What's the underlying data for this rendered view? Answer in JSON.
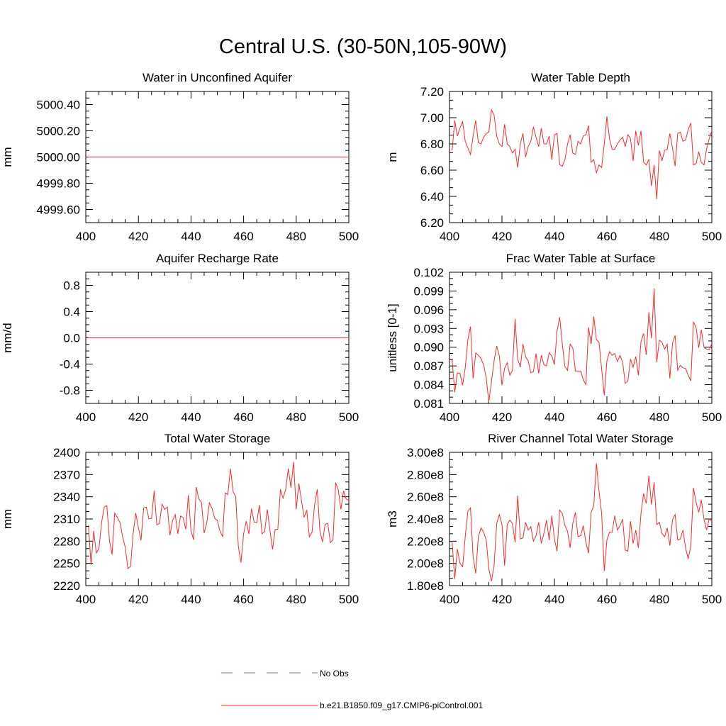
{
  "title": "Central U.S. (30-50N,105-90W)",
  "legend": [
    {
      "label": "No Obs",
      "color": "#6a6ad8",
      "style": "dashed"
    },
    {
      "label": "b.e21.B1850.f09_g17.CMIP6-piControl.001",
      "color": "#ff2a2a",
      "style": "solid"
    }
  ],
  "chart_data": [
    {
      "type": "line",
      "title": "Water in Unconfined Aquifer",
      "ylabel": "mm",
      "xlabel": "",
      "xlim": [
        400,
        500
      ],
      "ylim": [
        4999.5,
        5000.5
      ],
      "xticks": [
        400,
        420,
        440,
        460,
        480,
        500
      ],
      "xtick_labels": [
        "400",
        "420",
        "440",
        "460",
        "480",
        "500"
      ],
      "yticks": [
        4999.6,
        4999.8,
        5000.0,
        5000.2,
        5000.4
      ],
      "ytick_labels": [
        "4999.60",
        "4999.80",
        "5000.00",
        "5000.20",
        "5000.40"
      ],
      "series": [
        {
          "name": "b.e21.B1850.f09_g17.CMIP6-piControl.001",
          "color": "#ff2a2a",
          "x_start": 401,
          "x_step": 1,
          "values": [
            5000,
            5000,
            5000,
            5000,
            5000,
            5000,
            5000,
            5000,
            5000,
            5000,
            5000,
            5000,
            5000,
            5000,
            5000,
            5000,
            5000,
            5000,
            5000,
            5000,
            5000,
            5000,
            5000,
            5000,
            5000,
            5000,
            5000,
            5000,
            5000,
            5000,
            5000,
            5000,
            5000,
            5000,
            5000,
            5000,
            5000,
            5000,
            5000,
            5000,
            5000,
            5000,
            5000,
            5000,
            5000,
            5000,
            5000,
            5000,
            5000,
            5000,
            5000,
            5000,
            5000,
            5000,
            5000,
            5000,
            5000,
            5000,
            5000,
            5000,
            5000,
            5000,
            5000,
            5000,
            5000,
            5000,
            5000,
            5000,
            5000,
            5000,
            5000,
            5000,
            5000,
            5000,
            5000,
            5000,
            5000,
            5000,
            5000,
            5000,
            5000,
            5000,
            5000,
            5000,
            5000,
            5000,
            5000,
            5000,
            5000,
            5000,
            5000,
            5000,
            5000,
            5000,
            5000,
            5000,
            5000,
            5000,
            5000,
            5000
          ]
        }
      ]
    },
    {
      "type": "line",
      "title": "Water Table Depth",
      "ylabel": "m",
      "xlabel": "",
      "xlim": [
        400,
        500
      ],
      "ylim": [
        6.2,
        7.2
      ],
      "xticks": [
        400,
        420,
        440,
        460,
        480,
        500
      ],
      "xtick_labels": [
        "400",
        "420",
        "440",
        "460",
        "480",
        "500"
      ],
      "yticks": [
        6.2,
        6.4,
        6.6,
        6.8,
        7.0,
        7.2
      ],
      "ytick_labels": [
        "6.20",
        "6.40",
        "6.60",
        "6.80",
        "7.00",
        "7.20"
      ],
      "series": [
        {
          "name": "b.e21.B1850.f09_g17.CMIP6-piControl.001",
          "color": "#ff2a2a",
          "x_start": 401,
          "x_step": 1,
          "values": [
            6.75,
            6.98,
            6.86,
            6.92,
            6.97,
            6.82,
            6.77,
            6.72,
            6.86,
            6.98,
            6.81,
            6.8,
            6.85,
            6.88,
            6.89,
            7.06,
            7.02,
            6.86,
            6.8,
            6.78,
            6.95,
            6.8,
            6.78,
            6.73,
            6.76,
            6.62,
            6.8,
            6.88,
            6.7,
            6.78,
            6.82,
            6.93,
            6.85,
            6.78,
            6.92,
            6.8,
            6.8,
            6.86,
            6.68,
            6.87,
            6.88,
            6.64,
            6.63,
            6.68,
            6.8,
            6.87,
            6.73,
            6.72,
            6.82,
            6.8,
            6.86,
            6.87,
            6.94,
            6.66,
            6.68,
            6.58,
            6.64,
            6.62,
            6.8,
            7.01,
            6.84,
            6.76,
            6.76,
            6.8,
            6.83,
            6.85,
            6.78,
            6.87,
            6.84,
            6.67,
            6.9,
            6.79,
            6.9,
            6.66,
            6.64,
            6.68,
            6.48,
            6.64,
            6.38,
            6.75,
            6.67,
            6.75,
            6.76,
            6.88,
            6.77,
            6.63,
            6.88,
            6.89,
            6.82,
            6.83,
            6.91,
            6.96,
            6.64,
            6.65,
            6.74,
            6.66,
            6.64,
            6.76,
            6.84,
            6.9
          ]
        }
      ]
    },
    {
      "type": "line",
      "title": "Aquifer Recharge Rate",
      "ylabel": "mm/d",
      "xlabel": "",
      "xlim": [
        400,
        500
      ],
      "ylim": [
        -1.0,
        1.0
      ],
      "xticks": [
        400,
        420,
        440,
        460,
        480,
        500
      ],
      "xtick_labels": [
        "400",
        "420",
        "440",
        "460",
        "480",
        "500"
      ],
      "yticks": [
        -0.8,
        -0.4,
        0.0,
        0.4,
        0.8
      ],
      "ytick_labels": [
        "-0.8",
        "-0.4",
        "0.0",
        "0.4",
        "0.8"
      ],
      "series": [
        {
          "name": "b.e21.B1850.f09_g17.CMIP6-piControl.001",
          "color": "#ff2a2a",
          "x_start": 401,
          "x_step": 1,
          "values": [
            0,
            0,
            0,
            0,
            0,
            0,
            0,
            0,
            0,
            0,
            0,
            0,
            0,
            0,
            0,
            0,
            0,
            0,
            0,
            0,
            0,
            0,
            0,
            0,
            0,
            0,
            0,
            0,
            0,
            0,
            0,
            0,
            0,
            0,
            0,
            0,
            0,
            0,
            0,
            0,
            0,
            0,
            0,
            0,
            0,
            0,
            0,
            0,
            0,
            0,
            0,
            0,
            0,
            0,
            0,
            0,
            0,
            0,
            0,
            0,
            0,
            0,
            0,
            0,
            0,
            0,
            0,
            0,
            0,
            0,
            0,
            0,
            0,
            0,
            0,
            0,
            0,
            0,
            0,
            0,
            0,
            0,
            0,
            0,
            0,
            0,
            0,
            0,
            0,
            0,
            0,
            0,
            0,
            0,
            0,
            0,
            0,
            0,
            0,
            0
          ]
        }
      ]
    },
    {
      "type": "line",
      "title": "Frac Water Table at Surface",
      "ylabel": "unitless [0-1]",
      "xlabel": "",
      "xlim": [
        400,
        500
      ],
      "ylim": [
        0.081,
        0.102
      ],
      "xticks": [
        400,
        420,
        440,
        460,
        480,
        500
      ],
      "xtick_labels": [
        "400",
        "420",
        "440",
        "460",
        "480",
        "500"
      ],
      "yticks": [
        0.081,
        0.084,
        0.087,
        0.09,
        0.093,
        0.096,
        0.099,
        0.102
      ],
      "ytick_labels": [
        "0.081",
        "0.084",
        "0.087",
        "0.090",
        "0.093",
        "0.096",
        "0.099",
        "0.102"
      ],
      "series": [
        {
          "name": "b.e21.B1850.f09_g17.CMIP6-piControl.001",
          "color": "#ff2a2a",
          "x_start": 401,
          "x_step": 1,
          "values": [
            0.088,
            0.0828,
            0.0859,
            0.0858,
            0.0839,
            0.0867,
            0.0912,
            0.0933,
            0.085,
            0.0891,
            0.0887,
            0.0882,
            0.0872,
            0.0851,
            0.0812,
            0.0845,
            0.0878,
            0.0902,
            0.0886,
            0.0839,
            0.0866,
            0.0875,
            0.0855,
            0.0863,
            0.0945,
            0.0881,
            0.0868,
            0.0905,
            0.0885,
            0.0878,
            0.0859,
            0.0861,
            0.089,
            0.0858,
            0.0887,
            0.0872,
            0.087,
            0.0891,
            0.0886,
            0.0872,
            0.0926,
            0.0948,
            0.0905,
            0.0869,
            0.0863,
            0.0905,
            0.0899,
            0.0862,
            0.0862,
            0.0862,
            0.0848,
            0.084,
            0.0932,
            0.0905,
            0.0949,
            0.0912,
            0.0908,
            0.0865,
            0.0823,
            0.0878,
            0.0893,
            0.0887,
            0.089,
            0.0877,
            0.0887,
            0.0876,
            0.0842,
            0.0846,
            0.0881,
            0.0868,
            0.0885,
            0.0855,
            0.0909,
            0.0922,
            0.0888,
            0.0956,
            0.0914,
            0.0994,
            0.0876,
            0.0911,
            0.0908,
            0.0897,
            0.0905,
            0.085,
            0.0906,
            0.0919,
            0.0863,
            0.0871,
            0.0867,
            0.0866,
            0.0855,
            0.0846,
            0.094,
            0.0932,
            0.0899,
            0.0928,
            0.09,
            0.0897,
            0.0896,
            0.0906
          ]
        }
      ]
    },
    {
      "type": "line",
      "title": "Total Water Storage",
      "ylabel": "mm",
      "xlabel": "",
      "xlim": [
        400,
        500
      ],
      "ylim": [
        2220,
        2400
      ],
      "xticks": [
        400,
        420,
        440,
        460,
        480,
        500
      ],
      "xtick_labels": [
        "400",
        "420",
        "440",
        "460",
        "480",
        "500"
      ],
      "yticks": [
        2220,
        2250,
        2280,
        2310,
        2340,
        2370,
        2400
      ],
      "ytick_labels": [
        "2220",
        "2250",
        "2280",
        "2310",
        "2340",
        "2370",
        "2400"
      ],
      "series": [
        {
          "name": "b.e21.B1850.f09_g17.CMIP6-piControl.001",
          "color": "#ff2a2a",
          "x_start": 401,
          "x_step": 1,
          "values": [
            2302,
            2248,
            2294,
            2264,
            2270,
            2305,
            2326,
            2328,
            2281,
            2262,
            2318,
            2312,
            2305,
            2286,
            2272,
            2243,
            2246,
            2290,
            2318,
            2298,
            2281,
            2325,
            2326,
            2310,
            2311,
            2348,
            2302,
            2304,
            2330,
            2323,
            2326,
            2288,
            2308,
            2316,
            2290,
            2314,
            2312,
            2296,
            2342,
            2294,
            2282,
            2353,
            2337,
            2332,
            2291,
            2305,
            2332,
            2324,
            2311,
            2308,
            2294,
            2286,
            2345,
            2343,
            2378,
            2347,
            2340,
            2273,
            2251,
            2290,
            2307,
            2290,
            2324,
            2306,
            2305,
            2329,
            2290,
            2293,
            2323,
            2295,
            2269,
            2296,
            2296,
            2350,
            2338,
            2350,
            2378,
            2352,
            2387,
            2323,
            2358,
            2335,
            2312,
            2322,
            2286,
            2292,
            2329,
            2350,
            2294,
            2279,
            2303,
            2304,
            2278,
            2282,
            2359,
            2349,
            2323,
            2348,
            2337,
            2335
          ]
        }
      ]
    },
    {
      "type": "line",
      "title": "River Channel Total Water Storage",
      "ylabel": "m3",
      "xlabel": "",
      "xlim": [
        400,
        500
      ],
      "ylim": [
        180000000,
        300000000
      ],
      "xticks": [
        400,
        420,
        440,
        460,
        480,
        500
      ],
      "xtick_labels": [
        "400",
        "420",
        "440",
        "460",
        "480",
        "500"
      ],
      "yticks": [
        180000000,
        200000000,
        220000000,
        240000000,
        260000000,
        280000000,
        300000000
      ],
      "ytick_labels": [
        "1.80e8",
        "2.00e8",
        "2.20e8",
        "2.40e8",
        "2.60e8",
        "2.80e8",
        "3.00e8"
      ],
      "series": [
        {
          "name": "b.e21.B1850.f09_g17.CMIP6-piControl.001",
          "color": "#ff2a2a",
          "x_start": 401,
          "x_step": 1,
          "values": [
            219000000,
            186000000,
            213000000,
            200000000,
            197000000,
            224000000,
            247000000,
            250000000,
            206000000,
            191000000,
            224000000,
            232000000,
            228000000,
            221000000,
            195000000,
            184000000,
            198000000,
            236000000,
            244000000,
            235000000,
            198000000,
            235000000,
            239000000,
            236000000,
            219000000,
            261000000,
            222000000,
            223000000,
            237000000,
            230000000,
            233000000,
            220000000,
            225000000,
            237000000,
            218000000,
            227000000,
            239000000,
            221000000,
            243000000,
            222000000,
            211000000,
            248000000,
            245000000,
            234000000,
            229000000,
            214000000,
            236000000,
            246000000,
            224000000,
            225000000,
            234000000,
            219000000,
            209000000,
            246000000,
            252000000,
            290000000,
            265000000,
            245000000,
            193000000,
            221000000,
            228000000,
            228000000,
            243000000,
            230000000,
            234000000,
            240000000,
            212000000,
            211000000,
            238000000,
            218000000,
            230000000,
            214000000,
            245000000,
            263000000,
            254000000,
            279000000,
            253000000,
            273000000,
            235000000,
            237000000,
            227000000,
            224000000,
            232000000,
            216000000,
            239000000,
            244000000,
            221000000,
            222000000,
            230000000,
            214000000,
            204000000,
            216000000,
            268000000,
            255000000,
            246000000,
            257000000,
            240000000,
            230000000,
            240000000,
            238000000
          ]
        }
      ]
    }
  ]
}
